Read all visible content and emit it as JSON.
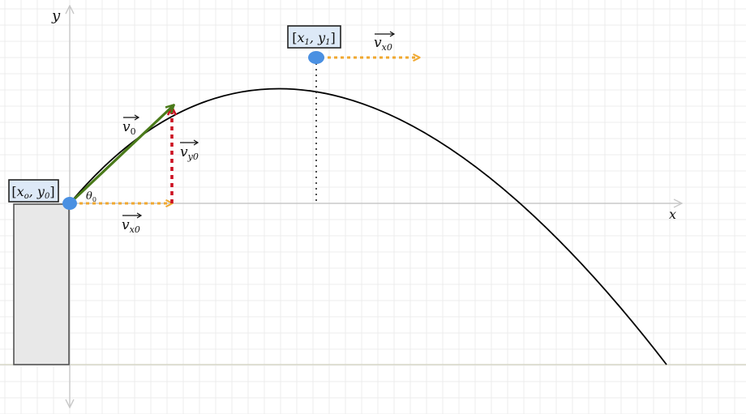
{
  "axes": {
    "x_label": "x",
    "y_label": "y"
  },
  "labels": {
    "start_point": "[x_o, y_0]",
    "start_point_parts": {
      "open": "[",
      "x": "x",
      "x_sub": "o",
      "comma": ", ",
      "y": "y",
      "y_sub": "0",
      "close": "]"
    },
    "peak_point": "[x_1, y_1]",
    "peak_point_parts": {
      "open": "[",
      "x": "x",
      "x_sub": "1",
      "comma": ", ",
      "y": "y",
      "y_sub": "1",
      "close": "]"
    },
    "v0": {
      "base": "v",
      "sub": "0"
    },
    "vx0_start": {
      "base": "v",
      "sub": "x0"
    },
    "vy0": {
      "base": "v",
      "sub": "y0"
    },
    "vx0_peak": {
      "base": "v",
      "sub": "x0"
    },
    "theta0": {
      "base": "θ",
      "sub": "0"
    }
  },
  "colors": {
    "grid": "#ececec",
    "axis": "#c8c8c8",
    "ground": "#d8d8c8",
    "trajectory": "#000000",
    "v0_arrow": "#4a7a1a",
    "vx_arrow": "#f0a830",
    "vy_arrow": "#cc1122",
    "point": "#4a90e2",
    "cliff_fill": "#e8e8e8",
    "cliff_stroke": "#555555",
    "label_box_fill": "#dde9f7"
  }
}
